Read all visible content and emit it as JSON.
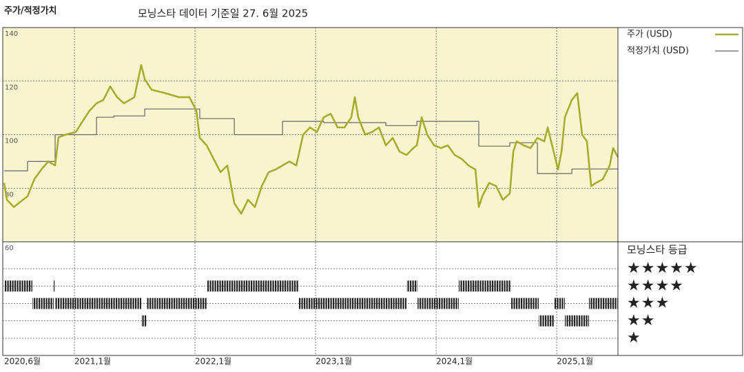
{
  "chart_data": {
    "type": "line",
    "title": "주가/적정가치",
    "subtitle": "모닝스타 데이터 기준일 27. 6월 2025",
    "xlim": [
      2020.417,
      2025.508
    ],
    "xticks": [
      {
        "value": 2020.417,
        "label": "2020,6월"
      },
      {
        "value": 2021,
        "label": "2021,1월"
      },
      {
        "value": 2022,
        "label": "2022,1월"
      },
      {
        "value": 2023,
        "label": "2023,1월"
      },
      {
        "value": 2024,
        "label": "2024,1월"
      },
      {
        "value": 2025,
        "label": "2025,1월"
      }
    ],
    "ylim": [
      60,
      140
    ],
    "yticks": [
      60,
      80,
      100,
      120,
      140
    ],
    "grid": true,
    "legend": "right",
    "series": [
      {
        "name": "주가 (USD)",
        "color": "#a7ad2a",
        "step": false,
        "x": [
          2020.417,
          2020.44,
          2020.497,
          2020.611,
          2020.668,
          2020.726,
          2020.783,
          2020.84,
          2020.868,
          2020.926,
          2021.011,
          2021.068,
          2021.126,
          2021.183,
          2021.24,
          2021.297,
          2021.354,
          2021.411,
          2021.497,
          2021.554,
          2021.583,
          2021.64,
          2021.754,
          2021.868,
          2021.954,
          2022.011,
          2022.04,
          2022.097,
          2022.154,
          2022.211,
          2022.268,
          2022.326,
          2022.383,
          2022.44,
          2022.497,
          2022.554,
          2022.611,
          2022.668,
          2022.726,
          2022.783,
          2022.84,
          2022.897,
          2022.954,
          2023.011,
          2023.068,
          2023.126,
          2023.183,
          2023.24,
          2023.297,
          2023.326,
          2023.354,
          2023.411,
          2023.468,
          2023.526,
          2023.583,
          2023.64,
          2023.697,
          2023.754,
          2023.811,
          2023.84,
          2023.88,
          2023.926,
          2023.983,
          2024.04,
          2024.097,
          2024.154,
          2024.211,
          2024.268,
          2024.326,
          2024.354,
          2024.383,
          2024.44,
          2024.497,
          2024.554,
          2024.611,
          2024.64,
          2024.668,
          2024.726,
          2024.783,
          2024.84,
          2024.897,
          2024.926,
          2024.954,
          2025.011,
          2025.04,
          2025.068,
          2025.126,
          2025.171,
          2025.211,
          2025.251,
          2025.286,
          2025.326,
          2025.383,
          2025.44,
          2025.468,
          2025.508
        ],
        "values": [
          82,
          75.7,
          73,
          77,
          83.4,
          87,
          90,
          88.5,
          99,
          100,
          101,
          105,
          109,
          111.7,
          113,
          118,
          114,
          111.7,
          114,
          126,
          120.7,
          116.8,
          115.5,
          114,
          114,
          109,
          98.8,
          96,
          91,
          86,
          88.5,
          74.4,
          70.5,
          75.7,
          73,
          80.8,
          86,
          87,
          88.5,
          90,
          88.5,
          100,
          102.7,
          101,
          106.5,
          107.8,
          102.7,
          102.7,
          106.5,
          114,
          106.5,
          100,
          101,
          102.7,
          96,
          98.8,
          93.7,
          92.4,
          95,
          96,
          106.5,
          100,
          96,
          95,
          96,
          92.4,
          91,
          88.5,
          87,
          73,
          77,
          82,
          80.8,
          75.7,
          78,
          93.7,
          97.5,
          96,
          95,
          98.8,
          97.5,
          102.7,
          97.5,
          87,
          93.7,
          106.5,
          113,
          115.5,
          100,
          97.5,
          80.8,
          82,
          83.4,
          88.5,
          95,
          91.6
        ]
      },
      {
        "name": "적정가치 (USD)",
        "color": "#666666",
        "step": true,
        "x": [
          2020.417,
          2020.611,
          2020.84,
          2021.183,
          2021.326,
          2021.583,
          2022.04,
          2022.326,
          2022.726,
          2023.068,
          2023.583,
          2023.84,
          2024.354,
          2024.611,
          2024.84,
          2025.126
        ],
        "values": [
          86.5,
          90,
          100,
          106.5,
          107,
          109.6,
          106,
          100,
          105,
          104.5,
          103.4,
          105,
          95.7,
          97,
          85.5,
          87.2
        ]
      }
    ],
    "rating_title": "모닝스타 등급",
    "rating_ticks": [
      {
        "value": 5,
        "label": "★★★★★"
      },
      {
        "value": 4,
        "label": "★★★★"
      },
      {
        "value": 3,
        "label": "★★★"
      },
      {
        "value": 2,
        "label": "★★"
      },
      {
        "value": 1,
        "label": "★"
      }
    ],
    "rating": {
      "x": [
        2020.417,
        2020.651,
        2020.828,
        2020.84,
        2021.554,
        2021.6,
        2022.097,
        2022.857,
        2023.754,
        2023.846,
        2024.188,
        2024.623,
        2024.851,
        2024.977,
        2025.068,
        2025.268
      ],
      "values": [
        4,
        3,
        4,
        3,
        2,
        3,
        4,
        3,
        4,
        3,
        4,
        3,
        2,
        3,
        2,
        3
      ]
    }
  }
}
